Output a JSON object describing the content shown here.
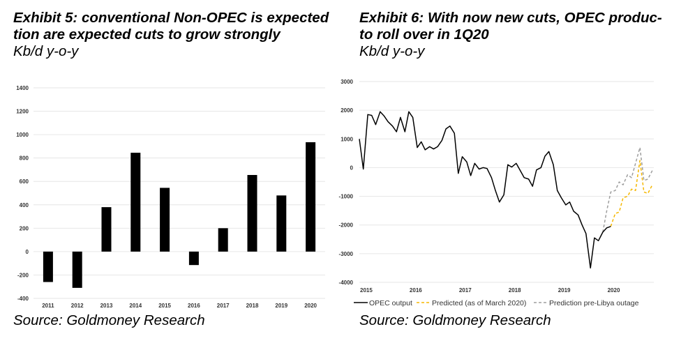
{
  "exhibit5": {
    "title_line1": "Exhibit 5: conventional Non-OPEC is expected",
    "title_line2": "tion are expected cuts to grow strongly",
    "subtitle": "Kb/d y-o-y",
    "source": "Source: Goldmoney Research"
  },
  "exhibit6": {
    "title_line1": "Exhibit 6: With now new cuts, OPEC produc-",
    "title_line2": "to roll over in 1Q20",
    "subtitle": "Kb/d y-o-y",
    "source": "Source: Goldmoney Research"
  },
  "chart_data": [
    {
      "type": "bar",
      "categories": [
        "2011",
        "2012",
        "2013",
        "2014",
        "2015",
        "2016",
        "2017",
        "2018",
        "2019",
        "2020"
      ],
      "values": [
        -260,
        -310,
        380,
        845,
        545,
        -115,
        200,
        655,
        480,
        935
      ],
      "ylim": [
        -400,
        1400
      ],
      "yticks": [
        -400,
        -200,
        0,
        200,
        400,
        600,
        800,
        1000,
        1200,
        1400
      ],
      "grid": true,
      "bar_color": "#000000"
    },
    {
      "type": "line",
      "ylim": [
        -4000,
        3000
      ],
      "yticks": [
        -4000,
        -3000,
        -2000,
        -1000,
        0,
        1000,
        2000,
        3000
      ],
      "xlim": [
        2015.0,
        2020.95
      ],
      "xticks": [
        "2015",
        "2016",
        "2017",
        "2018",
        "2019",
        "2020"
      ],
      "grid": true,
      "legend_position": "bottom",
      "series": [
        {
          "name": "OPEC output",
          "color": "#000000",
          "dash": "solid",
          "x": [
            2015.0,
            2015.08,
            2015.17,
            2015.25,
            2015.33,
            2015.42,
            2015.5,
            2015.58,
            2015.67,
            2015.75,
            2015.83,
            2015.92,
            2016.0,
            2016.08,
            2016.17,
            2016.25,
            2016.33,
            2016.42,
            2016.5,
            2016.58,
            2016.67,
            2016.75,
            2016.83,
            2016.92,
            2017.0,
            2017.08,
            2017.17,
            2017.25,
            2017.33,
            2017.42,
            2017.5,
            2017.58,
            2017.67,
            2017.75,
            2017.83,
            2017.92,
            2018.0,
            2018.08,
            2018.17,
            2018.25,
            2018.33,
            2018.42,
            2018.5,
            2018.58,
            2018.67,
            2018.75,
            2018.83,
            2018.92,
            2019.0,
            2019.08,
            2019.17,
            2019.25,
            2019.33,
            2019.42,
            2019.5,
            2019.58,
            2019.67,
            2019.75,
            2019.83,
            2019.92,
            2020.0,
            2020.08
          ],
          "y": [
            1000,
            -50,
            1850,
            1820,
            1500,
            1950,
            1800,
            1600,
            1450,
            1250,
            1750,
            1250,
            1950,
            1750,
            700,
            900,
            620,
            730,
            650,
            730,
            950,
            1350,
            1450,
            1200,
            -200,
            380,
            200,
            -280,
            150,
            -50,
            0,
            -30,
            -350,
            -800,
            -1200,
            -950,
            100,
            20,
            150,
            -100,
            -350,
            -400,
            -650,
            -80,
            0,
            400,
            560,
            100,
            -800,
            -1050,
            -1300,
            -1200,
            -1520,
            -1650,
            -2000,
            -2300,
            -3500,
            -2450,
            -2550,
            -2250,
            -2100,
            -2050
          ]
        },
        {
          "name": "Predicted (as of March 2020)",
          "color": "#F5B700",
          "dash": "dashed",
          "x": [
            2020.08,
            2020.17,
            2020.25,
            2020.33,
            2020.42,
            2020.5,
            2020.58,
            2020.67,
            2020.75,
            2020.83,
            2020.92
          ],
          "y": [
            -2050,
            -1600,
            -1550,
            -1050,
            -1000,
            -750,
            -800,
            250,
            -850,
            -900,
            -600
          ]
        },
        {
          "name": "Prediction pre-Libya outage",
          "color": "#9E9E9E",
          "dash": "dashed",
          "x": [
            2019.92,
            2020.0,
            2020.08,
            2020.17,
            2020.25,
            2020.33,
            2020.42,
            2020.5,
            2020.58,
            2020.67,
            2020.75,
            2020.83,
            2020.92
          ],
          "y": [
            -2250,
            -1500,
            -850,
            -800,
            -500,
            -600,
            -250,
            -350,
            150,
            700,
            -450,
            -400,
            -100
          ]
        }
      ]
    }
  ]
}
